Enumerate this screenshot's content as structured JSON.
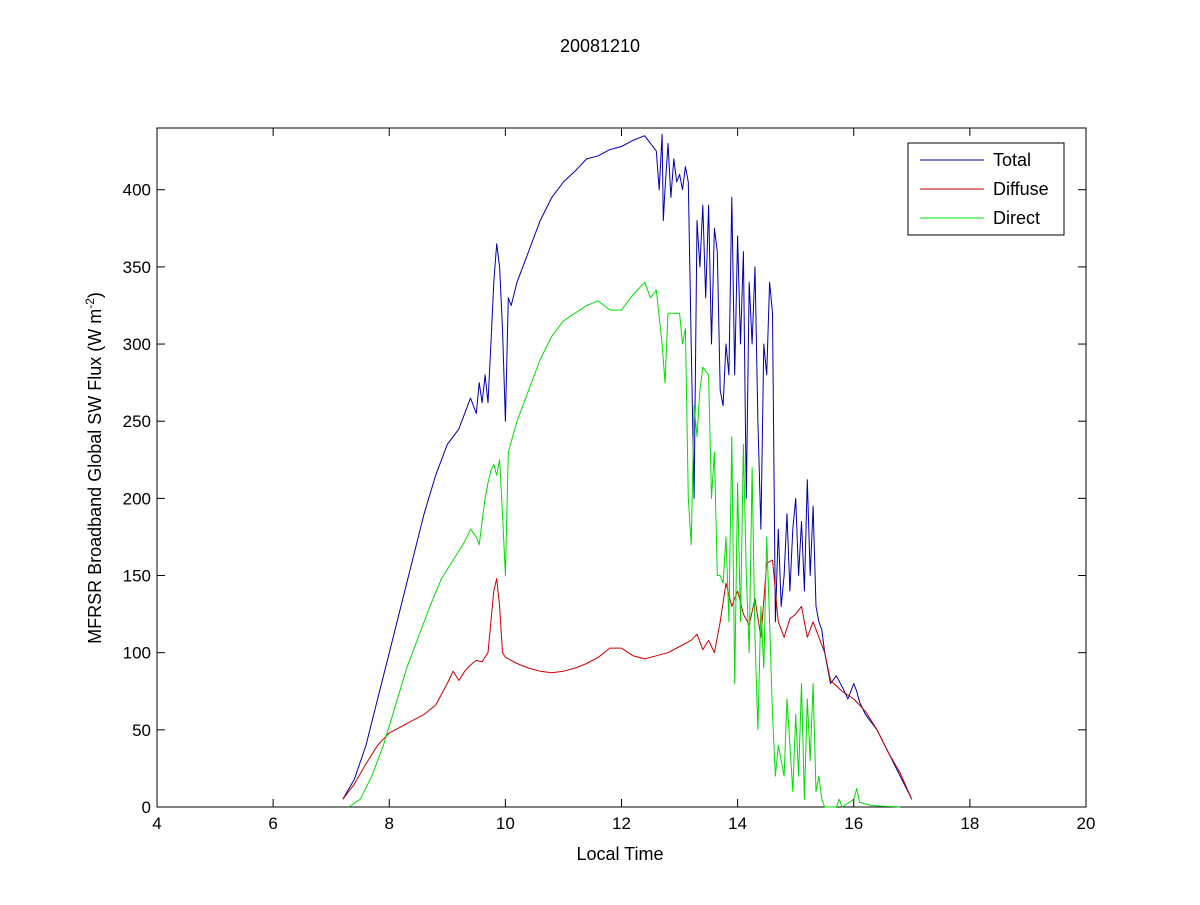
{
  "chart_data": {
    "type": "line",
    "title": "20081210",
    "xlabel": "Local Time",
    "ylabel": "MFRSR Broadband Global SW Flux (W m",
    "ylabel_sup": "-2",
    "ylabel_close": ")",
    "xlim": [
      4,
      20
    ],
    "ylim": [
      0,
      440
    ],
    "xticks": [
      4,
      6,
      8,
      10,
      12,
      14,
      16,
      18,
      20
    ],
    "yticks": [
      0,
      50,
      100,
      150,
      200,
      250,
      300,
      350,
      400
    ],
    "grid": false,
    "legend_position": "top-right",
    "series": [
      {
        "name": "Total",
        "color": "#0000aa",
        "points": [
          [
            7.2,
            5
          ],
          [
            7.4,
            18
          ],
          [
            7.6,
            40
          ],
          [
            7.8,
            70
          ],
          [
            8.0,
            100
          ],
          [
            8.2,
            130
          ],
          [
            8.4,
            160
          ],
          [
            8.6,
            190
          ],
          [
            8.8,
            215
          ],
          [
            9.0,
            235
          ],
          [
            9.2,
            245
          ],
          [
            9.4,
            265
          ],
          [
            9.5,
            255
          ],
          [
            9.55,
            275
          ],
          [
            9.6,
            262
          ],
          [
            9.65,
            280
          ],
          [
            9.7,
            262
          ],
          [
            9.75,
            300
          ],
          [
            9.8,
            340
          ],
          [
            9.85,
            365
          ],
          [
            9.9,
            350
          ],
          [
            9.95,
            310
          ],
          [
            10.0,
            250
          ],
          [
            10.05,
            330
          ],
          [
            10.1,
            325
          ],
          [
            10.2,
            340
          ],
          [
            10.4,
            360
          ],
          [
            10.6,
            380
          ],
          [
            10.8,
            395
          ],
          [
            11.0,
            405
          ],
          [
            11.2,
            412
          ],
          [
            11.4,
            420
          ],
          [
            11.6,
            422
          ],
          [
            11.8,
            426
          ],
          [
            12.0,
            428
          ],
          [
            12.2,
            432
          ],
          [
            12.4,
            435
          ],
          [
            12.5,
            430
          ],
          [
            12.6,
            425
          ],
          [
            12.65,
            400
          ],
          [
            12.7,
            436
          ],
          [
            12.72,
            380
          ],
          [
            12.75,
            400
          ],
          [
            12.8,
            430
          ],
          [
            12.85,
            395
          ],
          [
            12.9,
            420
          ],
          [
            12.95,
            405
          ],
          [
            13.0,
            410
          ],
          [
            13.05,
            400
          ],
          [
            13.1,
            415
          ],
          [
            13.15,
            405
          ],
          [
            13.2,
            300
          ],
          [
            13.25,
            200
          ],
          [
            13.3,
            380
          ],
          [
            13.35,
            350
          ],
          [
            13.4,
            390
          ],
          [
            13.45,
            330
          ],
          [
            13.5,
            390
          ],
          [
            13.55,
            300
          ],
          [
            13.6,
            375
          ],
          [
            13.65,
            360
          ],
          [
            13.7,
            270
          ],
          [
            13.75,
            260
          ],
          [
            13.8,
            300
          ],
          [
            13.85,
            280
          ],
          [
            13.9,
            395
          ],
          [
            13.95,
            280
          ],
          [
            14.0,
            370
          ],
          [
            14.05,
            300
          ],
          [
            14.1,
            360
          ],
          [
            14.15,
            200
          ],
          [
            14.2,
            340
          ],
          [
            14.25,
            300
          ],
          [
            14.3,
            350
          ],
          [
            14.35,
            250
          ],
          [
            14.4,
            180
          ],
          [
            14.45,
            300
          ],
          [
            14.5,
            280
          ],
          [
            14.55,
            340
          ],
          [
            14.6,
            320
          ],
          [
            14.65,
            120
          ],
          [
            14.7,
            180
          ],
          [
            14.75,
            130
          ],
          [
            14.8,
            150
          ],
          [
            14.85,
            190
          ],
          [
            14.9,
            140
          ],
          [
            14.95,
            180
          ],
          [
            15.0,
            200
          ],
          [
            15.05,
            150
          ],
          [
            15.1,
            185
          ],
          [
            15.15,
            140
          ],
          [
            15.2,
            212
          ],
          [
            15.25,
            150
          ],
          [
            15.3,
            195
          ],
          [
            15.35,
            130
          ],
          [
            15.4,
            120
          ],
          [
            15.45,
            115
          ],
          [
            15.5,
            100
          ],
          [
            15.6,
            80
          ],
          [
            15.7,
            85
          ],
          [
            15.8,
            78
          ],
          [
            15.9,
            70
          ],
          [
            16.0,
            80
          ],
          [
            16.05,
            75
          ],
          [
            16.1,
            68
          ],
          [
            16.2,
            60
          ],
          [
            16.4,
            50
          ],
          [
            16.6,
            35
          ],
          [
            16.8,
            20
          ],
          [
            17.0,
            5
          ]
        ]
      },
      {
        "name": "Diffuse",
        "color": "#cc0000",
        "points": [
          [
            7.2,
            5
          ],
          [
            7.4,
            15
          ],
          [
            7.6,
            28
          ],
          [
            7.8,
            40
          ],
          [
            8.0,
            48
          ],
          [
            8.2,
            52
          ],
          [
            8.4,
            56
          ],
          [
            8.6,
            60
          ],
          [
            8.8,
            66
          ],
          [
            9.0,
            80
          ],
          [
            9.1,
            88
          ],
          [
            9.2,
            82
          ],
          [
            9.3,
            88
          ],
          [
            9.4,
            92
          ],
          [
            9.5,
            95
          ],
          [
            9.6,
            94
          ],
          [
            9.7,
            100
          ],
          [
            9.8,
            140
          ],
          [
            9.85,
            148
          ],
          [
            9.9,
            130
          ],
          [
            9.95,
            100
          ],
          [
            10.0,
            97
          ],
          [
            10.2,
            93
          ],
          [
            10.4,
            90
          ],
          [
            10.6,
            88
          ],
          [
            10.8,
            87
          ],
          [
            11.0,
            88
          ],
          [
            11.2,
            90
          ],
          [
            11.4,
            93
          ],
          [
            11.6,
            97
          ],
          [
            11.8,
            103
          ],
          [
            12.0,
            103
          ],
          [
            12.2,
            98
          ],
          [
            12.4,
            96
          ],
          [
            12.6,
            98
          ],
          [
            12.8,
            100
          ],
          [
            13.0,
            104
          ],
          [
            13.2,
            108
          ],
          [
            13.3,
            112
          ],
          [
            13.4,
            102
          ],
          [
            13.5,
            108
          ],
          [
            13.6,
            100
          ],
          [
            13.7,
            120
          ],
          [
            13.8,
            145
          ],
          [
            13.9,
            130
          ],
          [
            14.0,
            140
          ],
          [
            14.1,
            125
          ],
          [
            14.2,
            118
          ],
          [
            14.3,
            135
          ],
          [
            14.4,
            110
          ],
          [
            14.5,
            158
          ],
          [
            14.6,
            160
          ],
          [
            14.7,
            120
          ],
          [
            14.8,
            110
          ],
          [
            14.9,
            122
          ],
          [
            15.0,
            125
          ],
          [
            15.1,
            130
          ],
          [
            15.2,
            110
          ],
          [
            15.3,
            120
          ],
          [
            15.4,
            110
          ],
          [
            15.5,
            100
          ],
          [
            15.6,
            82
          ],
          [
            15.8,
            75
          ],
          [
            16.0,
            70
          ],
          [
            16.2,
            62
          ],
          [
            16.4,
            50
          ],
          [
            16.6,
            35
          ],
          [
            16.8,
            22
          ],
          [
            17.0,
            5
          ]
        ]
      },
      {
        "name": "Direct",
        "color": "#00dd00",
        "points": [
          [
            7.3,
            0
          ],
          [
            7.5,
            5
          ],
          [
            7.7,
            20
          ],
          [
            7.9,
            40
          ],
          [
            8.1,
            65
          ],
          [
            8.3,
            90
          ],
          [
            8.5,
            110
          ],
          [
            8.7,
            130
          ],
          [
            8.9,
            148
          ],
          [
            9.1,
            160
          ],
          [
            9.3,
            172
          ],
          [
            9.4,
            180
          ],
          [
            9.5,
            175
          ],
          [
            9.55,
            170
          ],
          [
            9.6,
            185
          ],
          [
            9.65,
            200
          ],
          [
            9.7,
            210
          ],
          [
            9.75,
            218
          ],
          [
            9.8,
            222
          ],
          [
            9.85,
            215
          ],
          [
            9.9,
            225
          ],
          [
            9.95,
            190
          ],
          [
            10.0,
            150
          ],
          [
            10.05,
            230
          ],
          [
            10.2,
            250
          ],
          [
            10.4,
            270
          ],
          [
            10.6,
            290
          ],
          [
            10.8,
            305
          ],
          [
            11.0,
            315
          ],
          [
            11.2,
            320
          ],
          [
            11.4,
            325
          ],
          [
            11.6,
            328
          ],
          [
            11.8,
            322
          ],
          [
            12.0,
            322
          ],
          [
            12.2,
            332
          ],
          [
            12.4,
            340
          ],
          [
            12.5,
            330
          ],
          [
            12.6,
            335
          ],
          [
            12.7,
            300
          ],
          [
            12.75,
            275
          ],
          [
            12.8,
            320
          ],
          [
            12.9,
            320
          ],
          [
            13.0,
            320
          ],
          [
            13.05,
            300
          ],
          [
            13.1,
            310
          ],
          [
            13.15,
            200
          ],
          [
            13.2,
            170
          ],
          [
            13.25,
            260
          ],
          [
            13.3,
            240
          ],
          [
            13.35,
            270
          ],
          [
            13.4,
            285
          ],
          [
            13.5,
            280
          ],
          [
            13.55,
            200
          ],
          [
            13.6,
            230
          ],
          [
            13.65,
            150
          ],
          [
            13.7,
            150
          ],
          [
            13.75,
            145
          ],
          [
            13.8,
            175
          ],
          [
            13.85,
            120
          ],
          [
            13.9,
            240
          ],
          [
            13.95,
            80
          ],
          [
            14.0,
            210
          ],
          [
            14.05,
            120
          ],
          [
            14.1,
            235
          ],
          [
            14.15,
            150
          ],
          [
            14.2,
            100
          ],
          [
            14.25,
            220
          ],
          [
            14.3,
            110
          ],
          [
            14.35,
            50
          ],
          [
            14.4,
            130
          ],
          [
            14.45,
            90
          ],
          [
            14.5,
            175
          ],
          [
            14.55,
            120
          ],
          [
            14.6,
            60
          ],
          [
            14.65,
            20
          ],
          [
            14.7,
            40
          ],
          [
            14.75,
            30
          ],
          [
            14.8,
            20
          ],
          [
            14.85,
            70
          ],
          [
            14.9,
            40
          ],
          [
            14.95,
            10
          ],
          [
            15.0,
            60
          ],
          [
            15.05,
            20
          ],
          [
            15.1,
            80
          ],
          [
            15.15,
            5
          ],
          [
            15.2,
            70
          ],
          [
            15.25,
            30
          ],
          [
            15.3,
            80
          ],
          [
            15.35,
            10
          ],
          [
            15.4,
            20
          ],
          [
            15.45,
            5
          ],
          [
            15.5,
            0
          ],
          [
            15.7,
            0
          ],
          [
            15.75,
            5
          ],
          [
            15.8,
            0
          ],
          [
            16.0,
            5
          ],
          [
            16.05,
            12
          ],
          [
            16.1,
            3
          ],
          [
            16.3,
            1
          ],
          [
            16.8,
            0
          ]
        ]
      }
    ]
  }
}
